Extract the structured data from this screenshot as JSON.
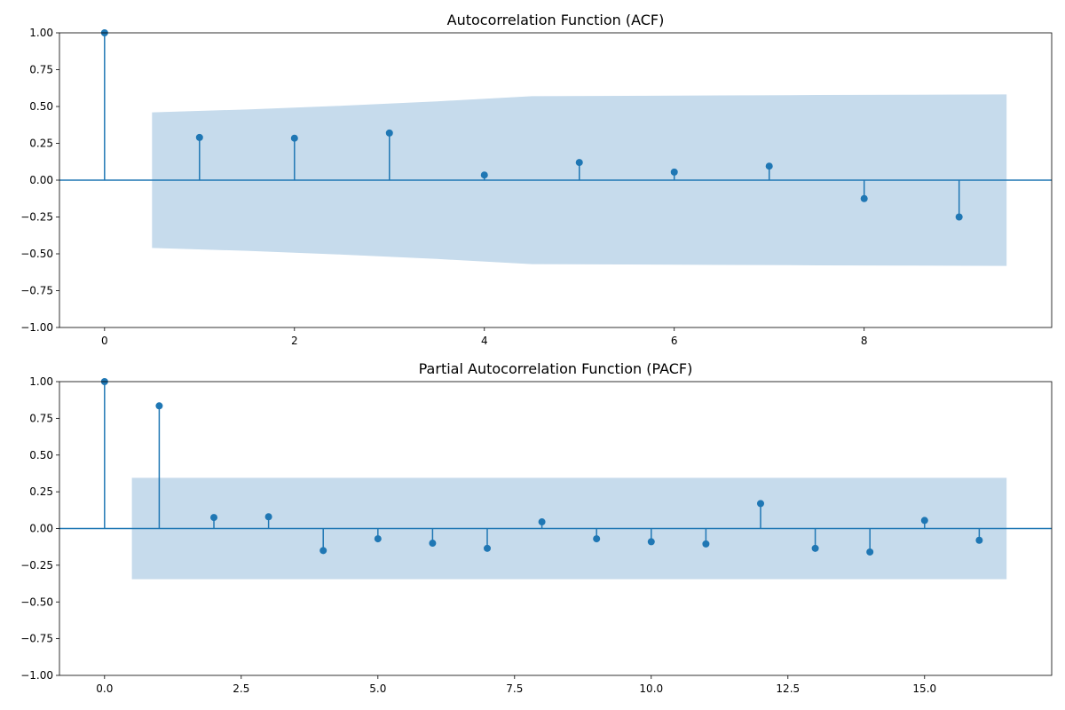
{
  "chart_data": [
    {
      "type": "stem",
      "title": "Autocorrelation Function (ACF)",
      "xlim": [
        -0.475,
        9.975
      ],
      "ylim": [
        -1.0,
        1.0
      ],
      "x_ticks": [
        0,
        2,
        4,
        6,
        8
      ],
      "x_tick_labels": [
        "0",
        "2",
        "4",
        "6",
        "8"
      ],
      "y_ticks": [
        -1.0,
        -0.75,
        -0.5,
        -0.25,
        0.0,
        0.25,
        0.5,
        0.75,
        1.0
      ],
      "y_tick_labels": [
        "−1.00",
        "−0.75",
        "−0.50",
        "−0.25",
        "0.00",
        "0.25",
        "0.50",
        "0.75",
        "1.00"
      ],
      "lags": [
        0,
        1,
        2,
        3,
        4,
        5,
        6,
        7,
        8,
        9
      ],
      "values": [
        1.0,
        0.29,
        0.285,
        0.32,
        0.035,
        0.12,
        0.055,
        0.095,
        -0.125,
        -0.25
      ],
      "confidence_band": {
        "x": [
          0.5,
          1.5,
          2.5,
          3.5,
          4.5,
          5.5,
          6.5,
          7.5,
          8.5,
          9.5
        ],
        "upper": [
          0.46,
          0.48,
          0.505,
          0.535,
          0.57,
          0.572,
          0.575,
          0.578,
          0.58,
          0.582
        ],
        "lower": [
          -0.46,
          -0.48,
          -0.505,
          -0.535,
          -0.57,
          -0.572,
          -0.575,
          -0.578,
          -0.58,
          -0.582
        ]
      },
      "grid": false,
      "color": "#1f77b4",
      "band_color": "#c6dbec"
    },
    {
      "type": "stem",
      "title": "Partial Autocorrelation Function (PACF)",
      "xlim": [
        -0.825,
        17.325
      ],
      "ylim": [
        -1.0,
        1.0
      ],
      "x_ticks": [
        0.0,
        2.5,
        5.0,
        7.5,
        10.0,
        12.5,
        15.0
      ],
      "x_tick_labels": [
        "0.0",
        "2.5",
        "5.0",
        "7.5",
        "10.0",
        "12.5",
        "15.0"
      ],
      "y_ticks": [
        -1.0,
        -0.75,
        -0.5,
        -0.25,
        0.0,
        0.25,
        0.5,
        0.75,
        1.0
      ],
      "y_tick_labels": [
        "−1.00",
        "−0.75",
        "−0.50",
        "−0.25",
        "0.00",
        "0.25",
        "0.50",
        "0.75",
        "1.00"
      ],
      "lags": [
        0,
        1,
        2,
        3,
        4,
        5,
        6,
        7,
        8,
        9,
        10,
        11,
        12,
        13,
        14,
        15,
        16
      ],
      "values": [
        1.0,
        0.835,
        0.075,
        0.08,
        -0.15,
        -0.07,
        -0.1,
        -0.135,
        0.045,
        -0.07,
        -0.09,
        -0.105,
        0.17,
        -0.135,
        -0.16,
        0.055,
        -0.08
      ],
      "confidence_band": {
        "x": [
          0.5,
          16.5
        ],
        "upper": [
          0.345,
          0.345
        ],
        "lower": [
          -0.345,
          -0.345
        ]
      },
      "grid": false,
      "color": "#1f77b4",
      "band_color": "#c6dbec"
    }
  ]
}
